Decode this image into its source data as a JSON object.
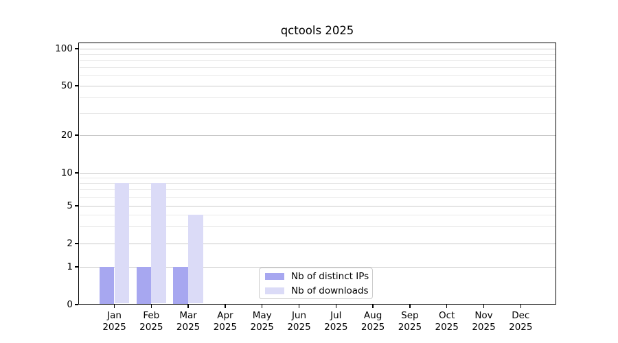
{
  "chart_data": {
    "type": "bar",
    "title": "qctools 2025",
    "categories": [
      {
        "month": "Jan",
        "year": "2025"
      },
      {
        "month": "Feb",
        "year": "2025"
      },
      {
        "month": "Mar",
        "year": "2025"
      },
      {
        "month": "Apr",
        "year": "2025"
      },
      {
        "month": "May",
        "year": "2025"
      },
      {
        "month": "Jun",
        "year": "2025"
      },
      {
        "month": "Jul",
        "year": "2025"
      },
      {
        "month": "Aug",
        "year": "2025"
      },
      {
        "month": "Sep",
        "year": "2025"
      },
      {
        "month": "Oct",
        "year": "2025"
      },
      {
        "month": "Nov",
        "year": "2025"
      },
      {
        "month": "Dec",
        "year": "2025"
      }
    ],
    "series": [
      {
        "name": "Nb of distinct IPs",
        "color": "#a7a7f0",
        "values": [
          1,
          1,
          1,
          0,
          0,
          0,
          0,
          0,
          0,
          0,
          0,
          0
        ]
      },
      {
        "name": "Nb of downloads",
        "color": "#dbdbf7",
        "values": [
          8,
          8,
          4,
          0,
          0,
          0,
          0,
          0,
          0,
          0,
          0,
          0
        ]
      }
    ],
    "y_axis": {
      "scale": "log-like",
      "major_ticks": [
        0,
        1,
        2,
        5,
        10,
        20,
        50,
        100
      ],
      "minor_gridlines": [
        3,
        4,
        6,
        7,
        8,
        9,
        30,
        40,
        60,
        70,
        80,
        90
      ]
    },
    "x_axis": {
      "label": "",
      "tick_count": 12
    },
    "legend": {
      "position": "lower center",
      "entries": [
        "Nb of distinct IPs",
        "Nb of downloads"
      ]
    },
    "grid": true
  },
  "colors": {
    "bar_distinct_ips": "#a7a7f0",
    "bar_downloads": "#dbdbf7",
    "grid_major": "#c8c8c8",
    "grid_minor": "#e8e8e8",
    "axis_line": "#000000",
    "text": "#000000",
    "legend_border": "#cccccc",
    "background": "#ffffff"
  }
}
